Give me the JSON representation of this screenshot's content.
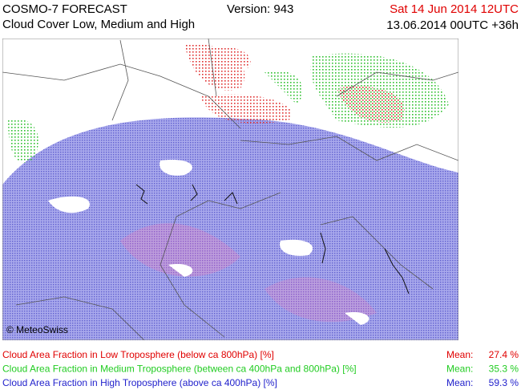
{
  "header": {
    "model": "COSMO-7 FORECAST",
    "version": "Version: 943",
    "valid_time": "Sat 14 Jun 2014 12UTC",
    "subtitle": "Cloud Cover Low, Medium and High",
    "run": "13.06.2014 00UTC +36h"
  },
  "map": {
    "copyright": "© MeteoSwiss"
  },
  "legend": [
    {
      "label": "Cloud Area Fraction in Low Troposphere (below ca 800hPa) [%]",
      "mean_label": "Mean:",
      "mean": "27.4 %",
      "color": "#e00000"
    },
    {
      "label": "Cloud Area Fraction in Medium Troposphere (between ca 400hPa and 800hPa) [%]",
      "mean_label": "Mean:",
      "mean": "35.3 %",
      "color": "#22cc22"
    },
    {
      "label": "Cloud Area Fraction in High Troposphere (above ca 400hPa) [%]",
      "mean_label": "Mean:",
      "mean": "59.3 %",
      "color": "#2222cc"
    }
  ]
}
